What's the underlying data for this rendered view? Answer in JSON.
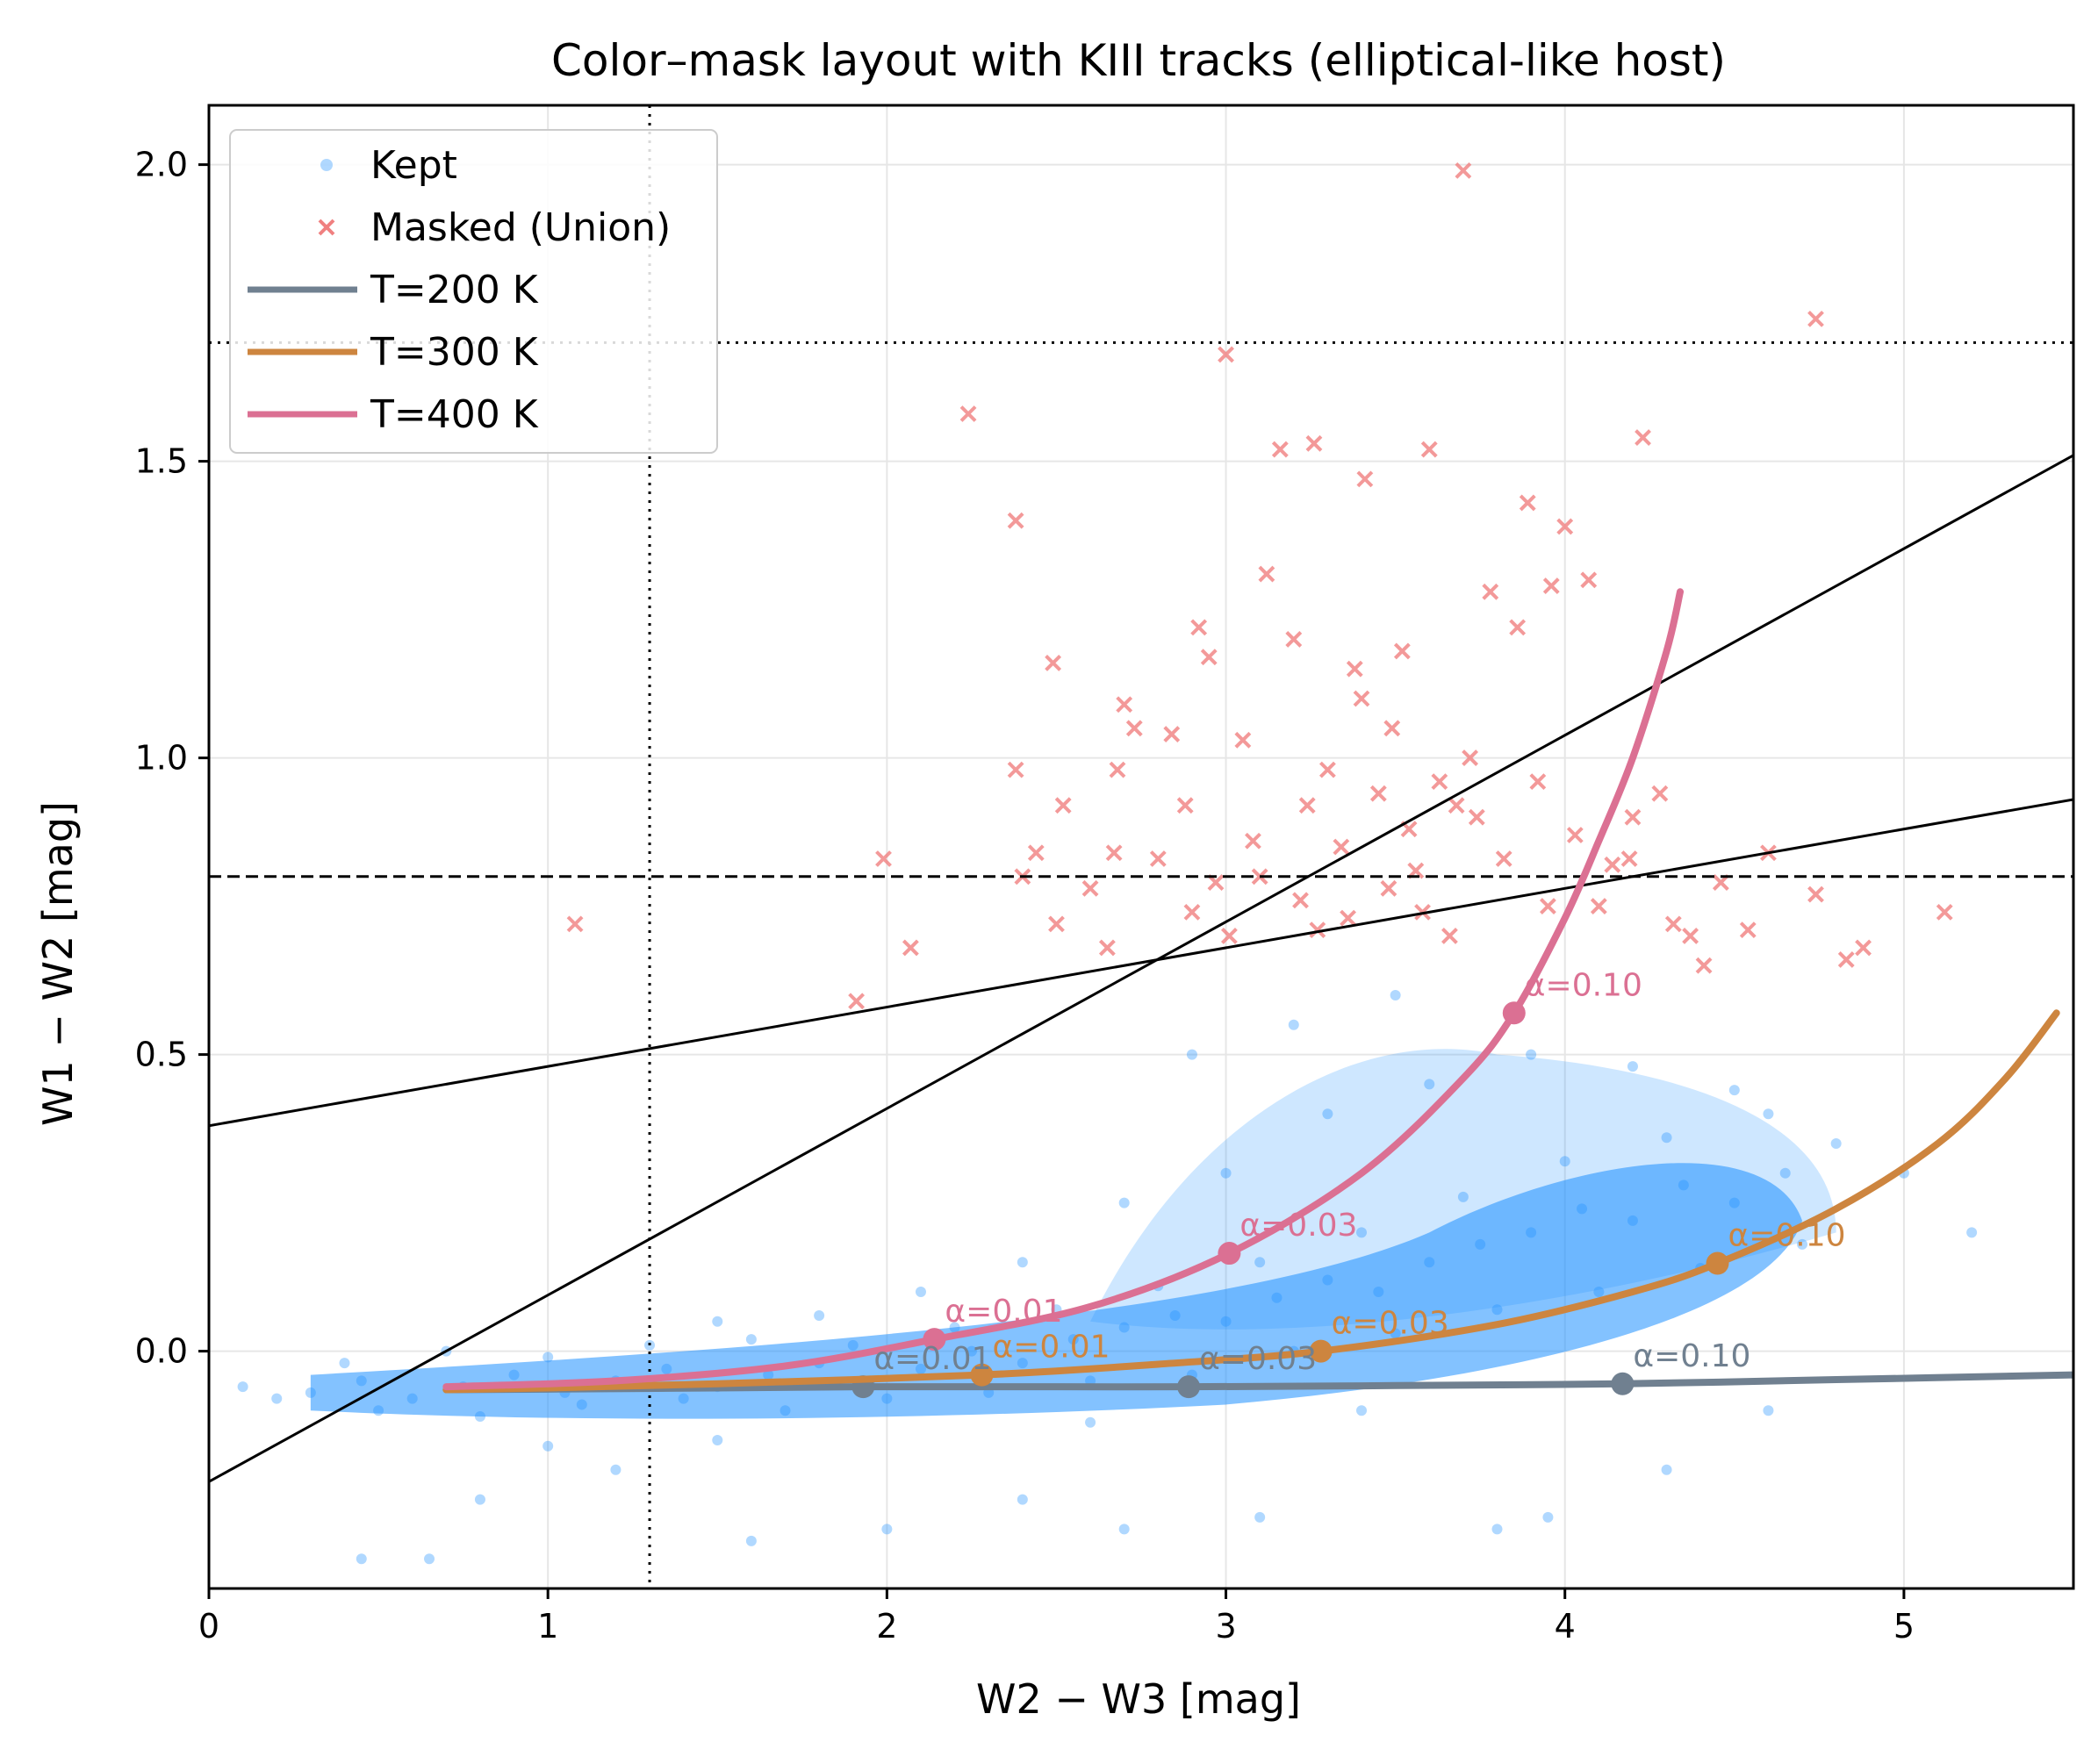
{
  "chart_data": {
    "type": "scatter",
    "title": "Color–mask layout with KIII tracks (elliptical-like host)",
    "xlabel": "W2 − W3 [mag]",
    "ylabel": "W1 − W2 [mag]",
    "xlim": [
      0,
      5.5
    ],
    "ylim": [
      -0.4,
      2.1
    ],
    "grid": true,
    "legend_placement": "upper-left",
    "xticks": [
      {
        "value": 0,
        "label": "0"
      },
      {
        "value": 1,
        "label": "1"
      },
      {
        "value": 2,
        "label": "2"
      },
      {
        "value": 3,
        "label": "3"
      },
      {
        "value": 4,
        "label": "4"
      },
      {
        "value": 5,
        "label": "5"
      }
    ],
    "yticks": [
      {
        "value": 0.0,
        "label": "0.0"
      },
      {
        "value": 0.5,
        "label": "0.5"
      },
      {
        "value": 1.0,
        "label": "1.0"
      },
      {
        "value": 1.5,
        "label": "1.5"
      },
      {
        "value": 2.0,
        "label": "2.0"
      }
    ],
    "legend": [
      {
        "label": "Kept",
        "kind": "marker-dot",
        "color": "#1e90ff"
      },
      {
        "label": "Masked (Union)",
        "kind": "marker-x",
        "color": "#f08080"
      },
      {
        "label": "T=200 K",
        "kind": "line",
        "color": "#708090"
      },
      {
        "label": "T=300 K",
        "kind": "line",
        "color": "#cd853f"
      },
      {
        "label": "T=400 K",
        "kind": "line",
        "color": "#db7093"
      }
    ],
    "reference_lines": [
      {
        "name": "vertical-dotted",
        "type": "vline",
        "x": 1.3,
        "style": "dotted"
      },
      {
        "name": "horizontal-dotted",
        "type": "hline",
        "y": 1.7,
        "style": "dotted"
      },
      {
        "name": "horizontal-dashed",
        "type": "hline",
        "y": 0.8,
        "style": "dashed"
      },
      {
        "name": "steep-diagonal",
        "type": "line",
        "points": [
          [
            0,
            -0.22
          ],
          [
            5.5,
            1.51
          ]
        ]
      },
      {
        "name": "shallow-diagonal",
        "type": "line",
        "points": [
          [
            0,
            0.38
          ],
          [
            5.5,
            0.93
          ]
        ]
      }
    ],
    "series": [
      {
        "name": "T=200 K",
        "color": "#708090",
        "x": [
          0.7,
          1.0,
          1.5,
          1.93,
          2.5,
          2.9,
          3.5,
          4.17,
          4.8,
          5.5
        ],
        "y": [
          -0.065,
          -0.064,
          -0.062,
          -0.06,
          -0.06,
          -0.06,
          -0.058,
          -0.055,
          -0.048,
          -0.04
        ],
        "markers": [
          {
            "x": 1.93,
            "y": -0.06,
            "label": "α=0.01"
          },
          {
            "x": 2.89,
            "y": -0.06,
            "label": "α=0.03"
          },
          {
            "x": 4.17,
            "y": -0.055,
            "label": "α=0.10"
          }
        ]
      },
      {
        "name": "T=300 K",
        "color": "#cd853f",
        "x": [
          0.7,
          1.0,
          1.5,
          2.28,
          2.8,
          3.28,
          3.8,
          4.2,
          4.45,
          4.8,
          5.1,
          5.3,
          5.45
        ],
        "y": [
          -0.065,
          -0.062,
          -0.055,
          -0.04,
          -0.022,
          0.0,
          0.045,
          0.1,
          0.148,
          0.24,
          0.35,
          0.46,
          0.57
        ],
        "markers": [
          {
            "x": 2.28,
            "y": -0.04,
            "label": "α=0.01"
          },
          {
            "x": 3.28,
            "y": 0.0,
            "label": "α=0.03"
          },
          {
            "x": 4.45,
            "y": 0.148,
            "label": "α=0.10"
          }
        ]
      },
      {
        "name": "T=400 K",
        "color": "#db7093",
        "x": [
          0.7,
          1.2,
          1.7,
          2.14,
          2.6,
          3.01,
          3.4,
          3.7,
          3.85,
          4.0,
          4.1,
          4.2,
          4.3,
          4.34
        ],
        "y": [
          -0.06,
          -0.05,
          -0.025,
          0.02,
          0.075,
          0.165,
          0.3,
          0.46,
          0.57,
          0.73,
          0.86,
          1.0,
          1.18,
          1.28
        ],
        "markers": [
          {
            "x": 2.14,
            "y": 0.02,
            "label": "α=0.01"
          },
          {
            "x": 3.01,
            "y": 0.165,
            "label": "α=0.03"
          },
          {
            "x": 3.85,
            "y": 0.57,
            "label": "α=0.10"
          }
        ]
      }
    ],
    "kept_points": [
      [
        0.3,
        -0.07
      ],
      [
        0.45,
        -0.05
      ],
      [
        0.6,
        -0.08
      ],
      [
        0.75,
        -0.06
      ],
      [
        0.9,
        -0.04
      ],
      [
        1.05,
        -0.07
      ],
      [
        1.2,
        -0.05
      ],
      [
        1.35,
        -0.03
      ],
      [
        1.5,
        -0.06
      ],
      [
        1.65,
        -0.04
      ],
      [
        1.8,
        -0.02
      ],
      [
        1.95,
        -0.05
      ],
      [
        2.1,
        -0.03
      ],
      [
        2.25,
        0.0
      ],
      [
        2.4,
        -0.02
      ],
      [
        2.55,
        0.02
      ],
      [
        2.7,
        0.04
      ],
      [
        2.85,
        0.06
      ],
      [
        3.0,
        0.05
      ],
      [
        3.15,
        0.09
      ],
      [
        3.3,
        0.12
      ],
      [
        3.45,
        0.1
      ],
      [
        3.6,
        0.15
      ],
      [
        3.75,
        0.18
      ],
      [
        3.9,
        0.2
      ],
      [
        4.05,
        0.24
      ],
      [
        4.2,
        0.22
      ],
      [
        4.35,
        0.28
      ],
      [
        4.5,
        0.25
      ],
      [
        4.65,
        0.3
      ],
      [
        0.5,
        -0.1
      ],
      [
        0.8,
        -0.11
      ],
      [
        1.1,
        -0.09
      ],
      [
        1.4,
        -0.08
      ],
      [
        1.7,
        -0.1
      ],
      [
        2.0,
        -0.08
      ],
      [
        2.3,
        -0.07
      ],
      [
        2.6,
        -0.05
      ],
      [
        2.9,
        -0.04
      ],
      [
        3.2,
        0.0
      ],
      [
        3.5,
        0.03
      ],
      [
        3.8,
        0.07
      ],
      [
        4.1,
        0.1
      ],
      [
        4.4,
        0.14
      ],
      [
        4.7,
        0.18
      ],
      [
        0.4,
        -0.02
      ],
      [
        0.7,
        0.0
      ],
      [
        1.0,
        -0.01
      ],
      [
        1.3,
        0.01
      ],
      [
        1.6,
        0.02
      ],
      [
        1.9,
        0.01
      ],
      [
        2.2,
        0.04
      ],
      [
        2.5,
        0.07
      ],
      [
        2.8,
        0.11
      ],
      [
        3.1,
        0.15
      ],
      [
        3.4,
        0.2
      ],
      [
        3.7,
        0.26
      ],
      [
        4.0,
        0.32
      ],
      [
        4.3,
        0.36
      ],
      [
        4.6,
        0.4
      ],
      [
        3.0,
        0.3
      ],
      [
        3.3,
        0.4
      ],
      [
        3.6,
        0.45
      ],
      [
        3.9,
        0.5
      ],
      [
        4.2,
        0.48
      ],
      [
        4.5,
        0.44
      ],
      [
        2.7,
        0.25
      ],
      [
        2.4,
        0.15
      ],
      [
        2.1,
        0.1
      ],
      [
        1.8,
        0.06
      ],
      [
        1.5,
        0.05
      ],
      [
        3.2,
        0.55
      ],
      [
        3.5,
        0.6
      ],
      [
        2.9,
        0.5
      ],
      [
        4.8,
        0.35
      ],
      [
        5.0,
        0.3
      ],
      [
        0.2,
        -0.08
      ],
      [
        0.1,
        -0.06
      ],
      [
        2.0,
        -0.3
      ],
      [
        2.4,
        -0.25
      ],
      [
        0.8,
        -0.25
      ],
      [
        1.2,
        -0.2
      ],
      [
        3.8,
        -0.3
      ],
      [
        4.3,
        -0.2
      ],
      [
        0.45,
        -0.35
      ],
      [
        0.65,
        -0.35
      ],
      [
        1.6,
        -0.32
      ],
      [
        2.7,
        -0.3
      ],
      [
        3.1,
        -0.28
      ],
      [
        3.95,
        -0.28
      ],
      [
        1.0,
        -0.16
      ],
      [
        1.5,
        -0.15
      ],
      [
        2.6,
        -0.12
      ],
      [
        3.4,
        -0.1
      ],
      [
        4.6,
        -0.1
      ],
      [
        5.2,
        0.2
      ]
    ],
    "masked_points": [
      [
        1.08,
        0.72
      ],
      [
        1.91,
        0.59
      ],
      [
        1.99,
        0.83
      ],
      [
        2.07,
        0.68
      ],
      [
        2.24,
        1.58
      ],
      [
        2.38,
        1.4
      ],
      [
        2.38,
        0.98
      ],
      [
        2.4,
        0.8
      ],
      [
        2.44,
        0.84
      ],
      [
        2.49,
        1.16
      ],
      [
        2.5,
        0.72
      ],
      [
        2.52,
        0.92
      ],
      [
        2.6,
        0.78
      ],
      [
        2.65,
        0.68
      ],
      [
        2.67,
        0.84
      ],
      [
        2.68,
        0.98
      ],
      [
        2.7,
        1.09
      ],
      [
        2.73,
        1.05
      ],
      [
        2.8,
        0.83
      ],
      [
        2.84,
        1.04
      ],
      [
        2.88,
        0.92
      ],
      [
        2.92,
        1.22
      ],
      [
        2.95,
        1.17
      ],
      [
        2.97,
        0.79
      ],
      [
        3.01,
        0.7
      ],
      [
        3.05,
        1.03
      ],
      [
        3.08,
        0.86
      ],
      [
        3.12,
        1.31
      ],
      [
        3.16,
        1.52
      ],
      [
        3.2,
        1.2
      ],
      [
        3.24,
        0.92
      ],
      [
        3.26,
        1.53
      ],
      [
        3.27,
        0.71
      ],
      [
        3.3,
        0.98
      ],
      [
        3.34,
        0.85
      ],
      [
        3.38,
        1.15
      ],
      [
        3.41,
        1.47
      ],
      [
        3.45,
        0.94
      ],
      [
        3.49,
        1.05
      ],
      [
        3.52,
        1.18
      ],
      [
        3.56,
        0.81
      ],
      [
        3.6,
        1.52
      ],
      [
        3.63,
        0.96
      ],
      [
        3.66,
        0.7
      ],
      [
        3.7,
        1.99
      ],
      [
        3.74,
        0.9
      ],
      [
        3.78,
        1.28
      ],
      [
        3.82,
        0.83
      ],
      [
        3.86,
        1.22
      ],
      [
        3.89,
        1.43
      ],
      [
        3.92,
        0.96
      ],
      [
        3.96,
        1.29
      ],
      [
        4.0,
        1.39
      ],
      [
        4.03,
        0.87
      ],
      [
        4.07,
        1.3
      ],
      [
        4.1,
        0.75
      ],
      [
        4.14,
        0.82
      ],
      [
        4.19,
        0.83
      ],
      [
        4.23,
        1.54
      ],
      [
        4.28,
        0.94
      ],
      [
        4.32,
        0.72
      ],
      [
        4.37,
        0.7
      ],
      [
        4.41,
        0.65
      ],
      [
        4.46,
        0.79
      ],
      [
        4.54,
        0.71
      ],
      [
        4.6,
        0.84
      ],
      [
        4.74,
        1.74
      ],
      [
        4.74,
        0.77
      ],
      [
        4.83,
        0.66
      ],
      [
        4.88,
        0.68
      ],
      [
        5.12,
        0.74
      ],
      [
        3.0,
        1.68
      ],
      [
        3.22,
        0.76
      ],
      [
        3.36,
        0.73
      ],
      [
        3.48,
        0.78
      ],
      [
        3.54,
        0.88
      ],
      [
        3.68,
        0.92
      ],
      [
        3.58,
        0.74
      ],
      [
        2.9,
        0.74
      ],
      [
        3.1,
        0.8
      ],
      [
        3.4,
        1.1
      ],
      [
        3.72,
        1.0
      ],
      [
        3.95,
        0.75
      ],
      [
        4.2,
        0.9
      ]
    ]
  }
}
